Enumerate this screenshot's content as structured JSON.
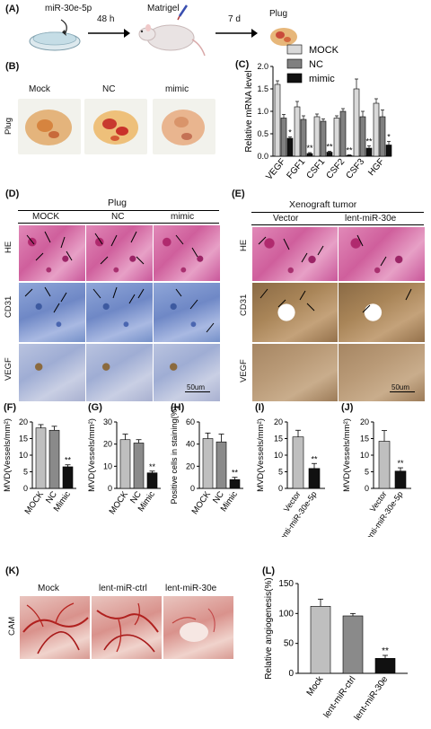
{
  "panelA": {
    "label": "(A)",
    "treatment": "miR-30e-5p",
    "step1": "48 h",
    "matrigel": "Matrigel",
    "step2": "7 d",
    "plug": "Plug"
  },
  "panelB": {
    "label": "(B)",
    "row_label": "Plug",
    "cols": [
      "Mock",
      "NC",
      "mimic"
    ]
  },
  "panelC": {
    "label": "(C)",
    "legend": [
      "MOCK",
      "NC",
      "mimic"
    ],
    "colors": [
      "#d9d9d9",
      "#808080",
      "#111111"
    ]
  },
  "panelD": {
    "label": "(D)",
    "title": "Plug",
    "cols": [
      "MOCK",
      "NC",
      "mimic"
    ],
    "rows": [
      "HE",
      "CD31",
      "VEGF"
    ],
    "scale": "50um"
  },
  "panelE": {
    "label": "(E)",
    "title": "Xenograft tumor",
    "cols": [
      "Vector",
      "lent-miR-30e"
    ],
    "rows": [
      "HE",
      "CD31",
      "VEGF"
    ],
    "scale": "50um"
  },
  "panelK": {
    "label": "(K)",
    "row_label": "CAM",
    "cols": [
      "Mock",
      "lent-miR-ctrl",
      "lent-miR-30e"
    ]
  },
  "chart_data": [
    {
      "id": "C",
      "type": "bar",
      "categories": [
        "VEGF",
        "FGF1",
        "CSF1",
        "CSF2",
        "CSF3",
        "HGF"
      ],
      "series": [
        {
          "name": "MOCK",
          "values": [
            1.6,
            1.1,
            0.88,
            0.85,
            1.5,
            1.18
          ]
        },
        {
          "name": "NC",
          "values": [
            0.85,
            0.82,
            0.78,
            1.0,
            0.88,
            0.88
          ]
        },
        {
          "name": "mimic",
          "values": [
            0.4,
            0.06,
            0.09,
            0.02,
            0.18,
            0.25
          ]
        }
      ],
      "errors": [
        [
          0.08,
          0.12,
          0.06,
          0.05,
          0.22,
          0.1
        ],
        [
          0.08,
          0.08,
          0.05,
          0.06,
          0.12,
          0.15
        ],
        [
          0.03,
          0.02,
          0.02,
          0.01,
          0.05,
          0.08
        ]
      ],
      "significance": [
        "*",
        "**",
        "**",
        "**",
        "**",
        "*"
      ],
      "ylabel": "Relative mRNA level",
      "ylim": [
        0,
        2.0
      ],
      "yticks": [
        "0.0",
        "0.5",
        "1.0",
        "1.5",
        "2.0"
      ]
    },
    {
      "id": "F",
      "label": "(F)",
      "type": "bar",
      "categories": [
        "MOCK",
        "NC",
        "Mimic"
      ],
      "values": [
        18.2,
        17.5,
        6.5
      ],
      "errors": [
        1.0,
        1.2,
        0.6
      ],
      "colors": [
        "#bfbfbf",
        "#8a8a8a",
        "#111111"
      ],
      "significance": [
        "",
        "",
        "**"
      ],
      "ylabel": "MVD(Vessels/mm²)",
      "ylim": [
        0,
        20
      ],
      "yticks": [
        "0",
        "5",
        "10",
        "15",
        "20"
      ]
    },
    {
      "id": "G",
      "label": "(G)",
      "type": "bar",
      "categories": [
        "MOCK",
        "NC",
        "Mimic"
      ],
      "values": [
        22,
        20.5,
        7
      ],
      "errors": [
        2.5,
        1.5,
        0.8
      ],
      "colors": [
        "#bfbfbf",
        "#8a8a8a",
        "#111111"
      ],
      "significance": [
        "",
        "",
        "**"
      ],
      "ylabel": "MVD(Vessels/mm²)",
      "ylim": [
        0,
        30
      ],
      "yticks": [
        "0",
        "10",
        "20",
        "30"
      ]
    },
    {
      "id": "H",
      "label": "(H)",
      "type": "bar",
      "categories": [
        "MOCK",
        "NC",
        "Mimic"
      ],
      "values": [
        45,
        42,
        8
      ],
      "errors": [
        5,
        7,
        2
      ],
      "colors": [
        "#bfbfbf",
        "#8a8a8a",
        "#111111"
      ],
      "significance": [
        "",
        "",
        "**"
      ],
      "ylabel": "Positive cells in staining(%)",
      "ylim": [
        0,
        60
      ],
      "yticks": [
        "0",
        "20",
        "40",
        "60"
      ]
    },
    {
      "id": "I",
      "label": "(I)",
      "type": "bar",
      "categories": [
        "Vector",
        "lenti-miR-30e-5p"
      ],
      "values": [
        15.5,
        6
      ],
      "errors": [
        2,
        1.5
      ],
      "colors": [
        "#bfbfbf",
        "#111111"
      ],
      "significance": [
        "",
        "**"
      ],
      "ylabel": "MVD(Vessels/mm²)",
      "ylim": [
        0,
        20
      ],
      "yticks": [
        "0",
        "5",
        "10",
        "15",
        "20"
      ]
    },
    {
      "id": "J",
      "label": "(J)",
      "type": "bar",
      "categories": [
        "Vector",
        "lenti-miR-30e-5p"
      ],
      "values": [
        14.2,
        5.2
      ],
      "errors": [
        3.2,
        1.0
      ],
      "colors": [
        "#bfbfbf",
        "#111111"
      ],
      "significance": [
        "",
        "**"
      ],
      "ylabel": "MVD(Vessels/mm²)",
      "ylim": [
        0,
        20
      ],
      "yticks": [
        "0",
        "5",
        "10",
        "15",
        "20"
      ]
    },
    {
      "id": "L",
      "label": "(L)",
      "type": "bar",
      "categories": [
        "Mock",
        "lent-miR-ctrl",
        "lent-miR-30e"
      ],
      "values": [
        112,
        96,
        25
      ],
      "errors": [
        12,
        4,
        5
      ],
      "colors": [
        "#bfbfbf",
        "#8a8a8a",
        "#111111"
      ],
      "significance": [
        "",
        "",
        "**"
      ],
      "ylabel": "Relative angiogenesis(%)",
      "ylim": [
        0,
        150
      ],
      "yticks": [
        "0",
        "50",
        "100",
        "150"
      ]
    }
  ]
}
